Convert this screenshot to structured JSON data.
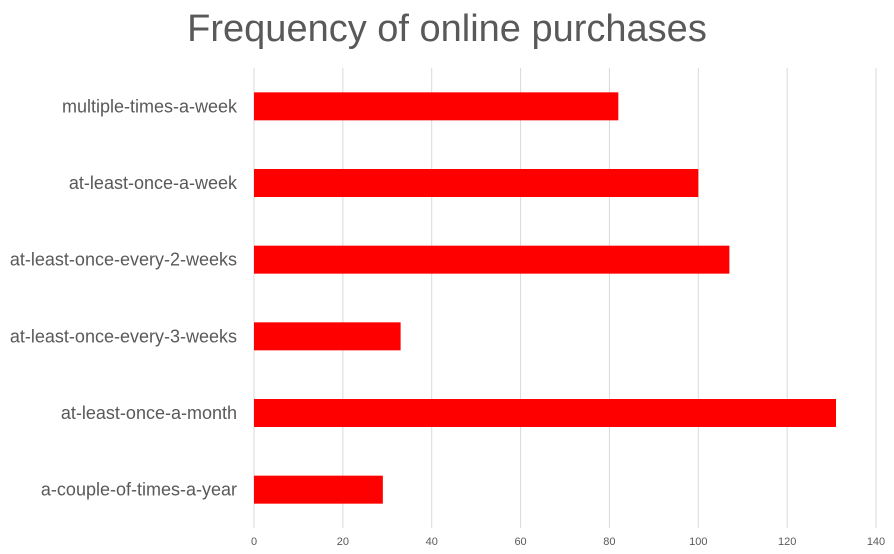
{
  "chart_data": {
    "type": "bar",
    "orientation": "horizontal",
    "title": "Frequency of online purchases",
    "xlabel": "",
    "ylabel": "",
    "categories": [
      "multiple-times-a-week",
      "at-least-once-a-week",
      "at-least-once-every-2-weeks",
      "at-least-once-every-3-weeks",
      "at-least-once-a-month",
      "a-couple-of-times-a-year"
    ],
    "values": [
      82,
      100,
      107,
      33,
      131,
      29
    ],
    "xlim": [
      0,
      140
    ],
    "xticks": [
      "0",
      "20",
      "40",
      "60",
      "80",
      "100",
      "120",
      "140"
    ],
    "grid": true,
    "bar_color": "#ff0000",
    "legend": "none"
  }
}
